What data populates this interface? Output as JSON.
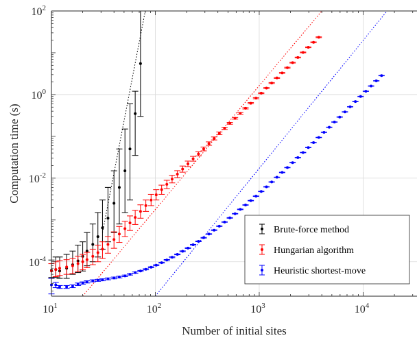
{
  "chart_data": {
    "type": "scatter",
    "xlabel": "Number of initial sites",
    "ylabel": "Computation time (s)",
    "xscale": "log",
    "yscale": "log",
    "xlim": [
      10,
      33000
    ],
    "ylim": [
      1.5e-05,
      100
    ],
    "grid": true,
    "legend_position": "bottom-right",
    "x_ticks": [
      {
        "base": "10",
        "exp": "1",
        "value": 10
      },
      {
        "base": "10",
        "exp": "2",
        "value": 100
      },
      {
        "base": "10",
        "exp": "3",
        "value": 1000
      },
      {
        "base": "10",
        "exp": "4",
        "value": 10000
      }
    ],
    "y_ticks": [
      {
        "base": "10",
        "exp": "-4",
        "value": 0.0001
      },
      {
        "base": "10",
        "exp": "-2",
        "value": 0.01
      },
      {
        "base": "10",
        "exp": "0",
        "value": 1
      },
      {
        "base": "10",
        "exp": "2",
        "value": 100
      }
    ],
    "series": [
      {
        "name": "Brute-force method",
        "color": "#000000",
        "x": [
          10,
          11,
          12,
          14,
          16,
          18,
          20,
          22,
          25,
          28,
          31,
          35,
          40,
          45,
          51,
          57,
          64,
          72
        ],
        "y": [
          6.2e-05,
          6.5e-05,
          6e-05,
          7e-05,
          8.5e-05,
          0.000105,
          0.000135,
          0.00018,
          0.00026,
          0.0004,
          0.00065,
          0.0011,
          0.0025,
          0.006,
          0.015,
          0.05,
          0.35,
          5.5
        ],
        "y_low": [
          4.2e-05,
          4.2e-05,
          4e-05,
          4e-05,
          5e-05,
          5.5e-05,
          6e-05,
          8e-05,
          0.0001,
          0.00013,
          0.0002,
          0.0003,
          0.0005,
          0.0008,
          0.0015,
          0.003,
          0.035,
          0.3
        ],
        "y_high": [
          0.00011,
          0.00013,
          0.00013,
          0.00015,
          0.00018,
          0.00025,
          0.0003,
          0.0005,
          0.0008,
          0.0015,
          0.003,
          0.006,
          0.015,
          0.05,
          0.15,
          0.6,
          1.2,
          100
        ]
      },
      {
        "name": "Hungarian algorithm",
        "color": "#ff0000",
        "x": [
          10,
          11,
          12,
          14,
          16,
          18,
          20,
          22,
          25,
          28,
          31,
          35,
          40,
          45,
          51,
          57,
          64,
          72,
          81,
          91,
          102,
          115,
          129,
          145,
          163,
          183,
          206,
          231,
          260,
          292,
          328,
          368,
          413,
          464,
          521,
          585,
          657,
          738,
          829,
          931,
          1045,
          1174,
          1318,
          1480,
          1662,
          1866,
          2095,
          2353,
          2642,
          2967,
          3331,
          3741
        ],
        "y": [
          6e-05,
          6.5e-05,
          7e-05,
          7.5e-05,
          8e-05,
          9e-05,
          0.0001,
          0.000112,
          0.000135,
          0.000165,
          0.0002,
          0.00026,
          0.00034,
          0.00046,
          0.00062,
          0.00085,
          0.00115,
          0.0016,
          0.0022,
          0.003,
          0.004,
          0.0053,
          0.0071,
          0.0095,
          0.0125,
          0.0165,
          0.022,
          0.029,
          0.038,
          0.05,
          0.067,
          0.089,
          0.118,
          0.155,
          0.205,
          0.27,
          0.355,
          0.47,
          0.62,
          0.82,
          1.08,
          1.43,
          1.89,
          2.5,
          3.3,
          4.4,
          5.8,
          7.7,
          10.2,
          13.5,
          17.8,
          23.5
        ],
        "y_low": [
          4e-05,
          4.4e-05,
          4.7e-05,
          5e-05,
          5.2e-05,
          5.8e-05,
          6.4e-05,
          7.2e-05,
          8.5e-05,
          0.0001,
          0.00012,
          0.00016,
          0.00021,
          0.00029,
          0.0004,
          0.00056,
          0.00078,
          0.0011,
          0.0016,
          0.0022,
          0.003,
          0.0041,
          0.0056,
          0.0077,
          0.0103,
          0.0139,
          0.0189,
          0.0255,
          0.034,
          0.045,
          0.061,
          0.082,
          0.11,
          0.146,
          0.195,
          0.258,
          0.34,
          0.452,
          0.6,
          0.795,
          1.05,
          1.39,
          1.84,
          2.44,
          3.22,
          4.3,
          5.67,
          7.53,
          9.98,
          13.2,
          17.4,
          23.0
        ],
        "y_high": [
          9e-05,
          0.0001,
          0.000105,
          0.000112,
          0.00012,
          0.000135,
          0.00015,
          0.000168,
          0.0002,
          0.00025,
          0.0003,
          0.0004,
          0.00052,
          0.0007,
          0.00093,
          0.00125,
          0.0017,
          0.0023,
          0.003,
          0.0041,
          0.0053,
          0.0068,
          0.0089,
          0.0117,
          0.0151,
          0.0195,
          0.0256,
          0.0332,
          0.0428,
          0.0556,
          0.0738,
          0.0968,
          0.127,
          0.165,
          0.216,
          0.283,
          0.371,
          0.489,
          0.643,
          0.846,
          1.11,
          1.47,
          1.94,
          2.56,
          3.38,
          4.5,
          5.93,
          7.87,
          10.4,
          13.8,
          18.2,
          24.0
        ]
      },
      {
        "name": "Heuristic shortest-move",
        "color": "#0000ff",
        "x": [
          10,
          11,
          12,
          14,
          16,
          18,
          20,
          22,
          25,
          28,
          31,
          35,
          40,
          45,
          51,
          57,
          64,
          72,
          81,
          91,
          102,
          115,
          129,
          145,
          163,
          183,
          206,
          231,
          260,
          292,
          328,
          368,
          413,
          464,
          521,
          585,
          657,
          738,
          829,
          931,
          1045,
          1174,
          1318,
          1480,
          1662,
          1866,
          2095,
          2353,
          2642,
          2967,
          3331,
          3741,
          4201,
          4717,
          5297,
          5948,
          6679,
          7500,
          8422,
          9457,
          10620,
          11925,
          13391,
          15037
        ],
        "y": [
          2.8e-05,
          2.8e-05,
          2.5e-05,
          2.5e-05,
          2.6e-05,
          2.9e-05,
          3.1e-05,
          3.3e-05,
          3.5e-05,
          3.6e-05,
          3.7e-05,
          3.9e-05,
          4.1e-05,
          4.3e-05,
          4.6e-05,
          5e-05,
          5.5e-05,
          6e-05,
          6.6e-05,
          7.4e-05,
          8.3e-05,
          9.5e-05,
          0.00011,
          0.000128,
          0.00015,
          0.000178,
          0.000212,
          0.000255,
          0.000308,
          0.000375,
          0.00046,
          0.00057,
          0.00071,
          0.00089,
          0.00112,
          0.00141,
          0.00179,
          0.00228,
          0.0029,
          0.0037,
          0.0048,
          0.0062,
          0.0081,
          0.0105,
          0.0137,
          0.0179,
          0.0235,
          0.031,
          0.041,
          0.054,
          0.071,
          0.094,
          0.125,
          0.165,
          0.22,
          0.29,
          0.385,
          0.51,
          0.68,
          0.9,
          1.2,
          1.6,
          2.13,
          2.84
        ],
        "y_low": [
          1.7e-05,
          2.4e-05,
          2.3e-05,
          2.3e-05,
          2.4e-05,
          2.7e-05,
          2.9e-05,
          3.1e-05,
          3.3e-05,
          3.4e-05,
          3.5e-05,
          3.7e-05,
          3.9e-05,
          4.1e-05,
          4.4e-05,
          4.8e-05,
          5.3e-05,
          5.8e-05,
          6.4e-05,
          7.2e-05,
          8.1e-05,
          9.3e-05,
          0.000107,
          0.000125,
          0.000147,
          0.000174,
          0.000208,
          0.00025,
          0.000302,
          0.000368,
          0.000452,
          0.00056,
          0.0007,
          0.00088,
          0.0011,
          0.00139,
          0.00176,
          0.00225,
          0.00286,
          0.00365,
          0.00474,
          0.00612,
          0.008,
          0.0104,
          0.0135,
          0.0177,
          0.0232,
          0.0306,
          0.0405,
          0.0534,
          0.0702,
          0.093,
          0.1236,
          0.1632,
          0.2176,
          0.2868,
          0.3808,
          0.5045,
          0.6726,
          0.89,
          1.187,
          1.582,
          2.107,
          2.809
        ],
        "y_high": [
          4e-05,
          3.2e-05,
          2.7e-05,
          2.7e-05,
          2.8e-05,
          3.1e-05,
          3.3e-05,
          3.5e-05,
          3.7e-05,
          3.8e-05,
          3.9e-05,
          4.1e-05,
          4.3e-05,
          4.5e-05,
          4.8e-05,
          5.2e-05,
          5.7e-05,
          6.2e-05,
          6.8e-05,
          7.6e-05,
          8.5e-05,
          9.7e-05,
          0.000113,
          0.000131,
          0.000153,
          0.000182,
          0.000216,
          0.00026,
          0.000314,
          0.000382,
          0.000468,
          0.00058,
          0.00072,
          0.0009,
          0.00114,
          0.00143,
          0.00182,
          0.00231,
          0.00294,
          0.00375,
          0.00486,
          0.00628,
          0.0082,
          0.0106,
          0.0139,
          0.0181,
          0.0238,
          0.0314,
          0.0415,
          0.0546,
          0.0718,
          0.095,
          0.1264,
          0.1668,
          0.2224,
          0.2932,
          0.3892,
          0.5155,
          0.6874,
          0.91,
          1.213,
          1.618,
          2.153,
          2.871
        ]
      }
    ],
    "fit_lines": [
      {
        "color": "#000000",
        "x": [
          31,
          80
        ],
        "y": [
          0.0005,
          100
        ]
      },
      {
        "color": "#ff0000",
        "x": [
          20,
          4000
        ],
        "y": [
          1.5e-05,
          100
        ]
      },
      {
        "color": "#0000ff",
        "x": [
          100,
          17000
        ],
        "y": [
          1.5e-05,
          100
        ]
      }
    ]
  }
}
